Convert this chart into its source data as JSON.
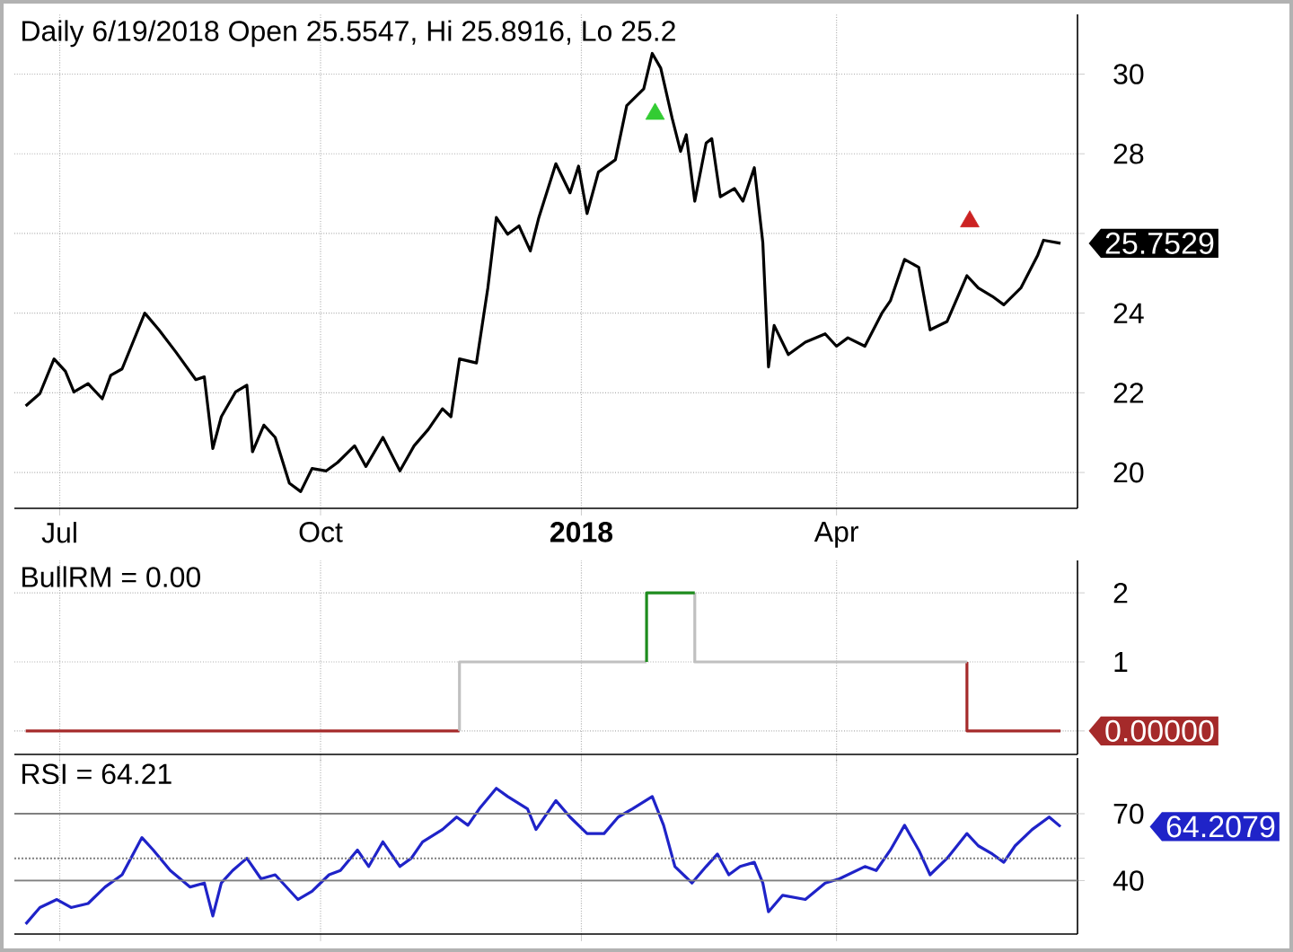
{
  "chart_data": [
    {
      "type": "line",
      "title": "Daily 6/19/2018 Open 25.5547, Hi 25.8916, Lo 25.2",
      "x": [
        "2017-06-19",
        "2017-06-24",
        "2017-06-29",
        "2017-07-03",
        "2017-07-06",
        "2017-07-11",
        "2017-07-16",
        "2017-07-19",
        "2017-07-23",
        "2017-07-31",
        "2017-08-05",
        "2017-08-11",
        "2017-08-18",
        "2017-08-21",
        "2017-08-24",
        "2017-08-27",
        "2017-09-01",
        "2017-09-05",
        "2017-09-07",
        "2017-09-11",
        "2017-09-15",
        "2017-09-20",
        "2017-09-24",
        "2017-09-28",
        "2017-10-03",
        "2017-10-07",
        "2017-10-13",
        "2017-10-17",
        "2017-10-23",
        "2017-10-29",
        "2017-11-03",
        "2017-11-08",
        "2017-11-13",
        "2017-11-16",
        "2017-11-19",
        "2017-11-25",
        "2017-11-29",
        "2017-12-02",
        "2017-12-06",
        "2017-12-10",
        "2017-12-14",
        "2017-12-17",
        "2017-12-23",
        "2017-12-28",
        "2017-12-31",
        "2018-01-03",
        "2018-01-07",
        "2018-01-13",
        "2018-01-17",
        "2018-01-23",
        "2018-01-26",
        "2018-01-29",
        "2018-02-02",
        "2018-02-05",
        "2018-02-07",
        "2018-02-10",
        "2018-02-14",
        "2018-02-16",
        "2018-02-19",
        "2018-02-24",
        "2018-02-27",
        "2018-03-03",
        "2018-03-06",
        "2018-03-08",
        "2018-03-10",
        "2018-03-15",
        "2018-03-21",
        "2018-03-28",
        "2018-04-01",
        "2018-04-05",
        "2018-04-11",
        "2018-04-17",
        "2018-04-20",
        "2018-04-23",
        "2018-04-25",
        "2018-04-30",
        "2018-05-04",
        "2018-05-10",
        "2018-05-17",
        "2018-05-21",
        "2018-05-26",
        "2018-05-30",
        "2018-06-05",
        "2018-06-11",
        "2018-06-13",
        "2018-06-19"
      ],
      "series": [
        {
          "color": "#000000",
          "values": [
            21.67,
            21.98,
            22.85,
            22.54,
            22.02,
            22.23,
            21.85,
            22.44,
            22.6,
            24.0,
            23.58,
            23.02,
            22.33,
            22.4,
            20.6,
            21.4,
            22.02,
            22.19,
            20.52,
            21.19,
            20.88,
            19.73,
            19.52,
            20.1,
            20.04,
            20.25,
            20.67,
            20.15,
            20.88,
            20.04,
            20.67,
            21.08,
            21.6,
            21.4,
            22.85,
            22.75,
            24.63,
            26.4,
            25.98,
            26.19,
            25.56,
            26.4,
            27.75,
            27.02,
            27.69,
            26.5,
            27.54,
            27.85,
            29.21,
            29.63,
            30.52,
            30.15,
            28.9,
            28.06,
            28.48,
            26.81,
            28.27,
            28.38,
            26.92,
            27.13,
            26.81,
            27.65,
            25.77,
            22.65,
            23.69,
            22.96,
            23.27,
            23.48,
            23.17,
            23.38,
            23.17,
            24.0,
            24.31,
            24.94,
            25.35,
            25.15,
            23.58,
            23.79,
            24.94,
            24.63,
            24.42,
            24.21,
            24.63,
            25.46,
            25.83,
            25.7529
          ]
        },
        {
          "type": "scatter",
          "marker": "triangle",
          "color": "#33cc33",
          "x": [
            "2018-01-27"
          ],
          "values": [
            29.0
          ]
        },
        {
          "type": "scatter",
          "marker": "triangle",
          "color": "#cc2222",
          "x": [
            "2018-05-18"
          ],
          "values": [
            26.3
          ]
        }
      ],
      "xlim": [
        "2017-06-15",
        "2018-06-25"
      ],
      "xticks": [
        {
          "value": "2017-07-01",
          "label": "Jul"
        },
        {
          "value": "2017-10-01",
          "label": "Oct"
        },
        {
          "value": "2018-01-01",
          "label": "**2018**"
        },
        {
          "value": "2018-04-01",
          "label": "Apr"
        }
      ],
      "ylim": [
        19.1,
        31.5
      ],
      "yticks": [
        20,
        22,
        24,
        {
          "value": 26,
          "label": null
        },
        28,
        30
      ],
      "grid": true,
      "annotations": [
        {
          "text": "25.7529",
          "x": "2018-06-19",
          "y": 25.7529
        }
      ]
    },
    {
      "type": "step",
      "title": "BullRM = 0.00",
      "series": [
        {
          "color": "#a52a2a",
          "x": [
            "2017-06-19",
            "2017-11-19",
            "2018-05-17",
            "2018-05-17",
            "2018-06-19"
          ],
          "values": [
            0,
            null,
            1,
            0,
            0
          ]
        },
        {
          "color": "#c0c0c0",
          "x": [
            "2017-11-19",
            "2017-11-19",
            "2018-01-24",
            "2018-02-10",
            "2018-02-10",
            "2018-05-17"
          ],
          "values": [
            0,
            1,
            null,
            2,
            1,
            1
          ]
        },
        {
          "color": "#1e8c1e",
          "x": [
            "2018-01-24",
            "2018-01-24",
            "2018-02-10"
          ],
          "values": [
            1,
            2,
            2
          ]
        }
      ],
      "xlim": [
        "2017-06-15",
        "2018-06-25"
      ],
      "xticks": [
        {
          "value": "2017-07-01",
          "label": null
        },
        {
          "value": "2017-10-01",
          "label": null
        },
        {
          "value": "2018-01-01",
          "label": null
        },
        {
          "value": "2018-04-01",
          "label": null
        }
      ],
      "ylim": [
        -0.34,
        2.47
      ],
      "yticks": [
        {
          "value": 0,
          "label": null
        },
        1,
        2
      ],
      "grid": true,
      "tick_labels": "y",
      "annotations": [
        {
          "text": "0.00000",
          "x": "2018-06-19",
          "y": 0
        }
      ]
    },
    {
      "type": "line",
      "title": "RSI = 64.21",
      "x": [
        "2017-06-19",
        "2017-06-24",
        "2017-06-30",
        "2017-07-05",
        "2017-07-11",
        "2017-07-17",
        "2017-07-23",
        "2017-07-30",
        "2017-08-03",
        "2017-08-09",
        "2017-08-16",
        "2017-08-21",
        "2017-08-24",
        "2017-08-27",
        "2017-08-31",
        "2017-09-05",
        "2017-09-10",
        "2017-09-15",
        "2017-09-23",
        "2017-09-28",
        "2017-10-04",
        "2017-10-08",
        "2017-10-14",
        "2017-10-18",
        "2017-10-23",
        "2017-10-29",
        "2017-11-02",
        "2017-11-06",
        "2017-11-13",
        "2017-11-18",
        "2017-11-22",
        "2017-11-26",
        "2017-12-02",
        "2017-12-06",
        "2017-12-13",
        "2017-12-16",
        "2017-12-23",
        "2017-12-28",
        "2018-01-03",
        "2018-01-09",
        "2018-01-14",
        "2018-01-19",
        "2018-01-26",
        "2018-01-30",
        "2018-02-03",
        "2018-02-09",
        "2018-02-14",
        "2018-02-18",
        "2018-02-22",
        "2018-02-26",
        "2018-03-03",
        "2018-03-06",
        "2018-03-08",
        "2018-03-13",
        "2018-03-21",
        "2018-03-28",
        "2018-04-02",
        "2018-04-11",
        "2018-04-15",
        "2018-04-20",
        "2018-04-25",
        "2018-04-30",
        "2018-05-04",
        "2018-05-10",
        "2018-05-17",
        "2018-05-21",
        "2018-05-26",
        "2018-05-30",
        "2018-06-03",
        "2018-06-09",
        "2018-06-15",
        "2018-06-19"
      ],
      "series": [
        {
          "color": "#1f23c8",
          "values": [
            20.5,
            27.9,
            31.5,
            27.9,
            29.7,
            37.1,
            42.6,
            59.3,
            53.7,
            44.5,
            37.1,
            38.9,
            24.1,
            38.9,
            44.5,
            50.0,
            40.8,
            42.6,
            31.5,
            35.2,
            42.6,
            44.5,
            53.7,
            46.3,
            57.4,
            46.3,
            50.0,
            57.4,
            62.9,
            68.5,
            64.8,
            72.2,
            81.4,
            77.7,
            72.2,
            62.9,
            75.9,
            68.5,
            61.1,
            61.1,
            68.5,
            72.2,
            77.7,
            64.8,
            46.3,
            38.9,
            46.3,
            51.9,
            42.6,
            46.3,
            48.2,
            38.9,
            26.0,
            33.4,
            31.5,
            38.9,
            40.8,
            46.3,
            44.5,
            53.7,
            64.8,
            53.7,
            42.6,
            50.0,
            61.1,
            55.6,
            51.9,
            48.2,
            55.6,
            62.9,
            68.5,
            64.2079
          ]
        }
      ],
      "xlim": [
        "2017-06-15",
        "2018-06-25"
      ],
      "xticks": [
        {
          "value": "2017-07-01",
          "label": null
        },
        {
          "value": "2017-10-01",
          "label": null
        },
        {
          "value": "2018-01-01",
          "label": null
        },
        {
          "value": "2018-04-01",
          "label": null
        }
      ],
      "ylim": [
        16,
        95
      ],
      "yticks": [
        40,
        {
          "value": 50,
          "label": null
        },
        70
      ],
      "grid": "x",
      "tick_labels": "y",
      "ref_lines": [
        {
          "axis": "y",
          "value": 40,
          "color": "#808080"
        },
        {
          "axis": "y",
          "value": 50,
          "color": "#808080",
          "line_style": "dotted"
        },
        {
          "axis": "y",
          "value": 70,
          "color": "#808080"
        }
      ],
      "annotations": [
        "64.2079"
      ]
    }
  ]
}
